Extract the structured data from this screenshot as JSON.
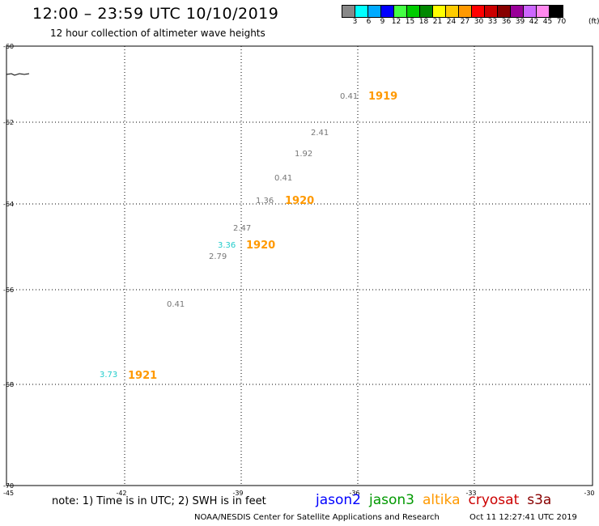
{
  "header": {
    "title": "12:00 – 23:59 UTC 10/10/2019",
    "subtitle": "12 hour collection of altimeter wave heights"
  },
  "colorbar": {
    "colors": [
      "#888888",
      "#00ffff",
      "#00aaff",
      "#0000ff",
      "#44ff44",
      "#00cc00",
      "#008800",
      "#ffff00",
      "#ffcc00",
      "#ff9900",
      "#ff0000",
      "#cc0000",
      "#880000",
      "#990099",
      "#cc66ff",
      "#ff88ee",
      "#000000"
    ],
    "labels": [
      "3",
      "6",
      "9",
      "12",
      "15",
      "18",
      "21",
      "24",
      "27",
      "30",
      "33",
      "36",
      "39",
      "42",
      "45",
      "70"
    ],
    "unit": "(ft)"
  },
  "axes": {
    "lon_ticks": [
      "-45",
      "-42",
      "-39",
      "-36",
      "-33",
      "-30"
    ],
    "lat_ticks": [
      "-60",
      "-62",
      "-64",
      "-66",
      "-68",
      "-70"
    ]
  },
  "observations": [
    {
      "value": "0.41",
      "color": "#777777"
    },
    {
      "value": "2.41",
      "color": "#777777"
    },
    {
      "value": "1.92",
      "color": "#777777"
    },
    {
      "value": "0.41",
      "color": "#777777"
    },
    {
      "value": "1.36",
      "color": "#777777"
    },
    {
      "value": "2.47",
      "color": "#777777"
    },
    {
      "value": "3.36",
      "color": "#22cccc"
    },
    {
      "value": "2.79",
      "color": "#777777"
    },
    {
      "value": "0.41",
      "color": "#777777"
    },
    {
      "value": "3.73",
      "color": "#22cccc"
    }
  ],
  "pass_labels": [
    {
      "text": "1919",
      "color": "#ff9900"
    },
    {
      "text": "1920",
      "color": "#ff9900"
    },
    {
      "text": "1920",
      "color": "#ff9900"
    },
    {
      "text": "1921",
      "color": "#ff9900"
    }
  ],
  "footer": {
    "note": "note: 1) Time is in UTC; 2) SWH is in feet",
    "satellites": [
      {
        "name": "jason2",
        "color": "#0000ff"
      },
      {
        "name": "jason3",
        "color": "#009900"
      },
      {
        "name": "altika",
        "color": "#ff9900"
      },
      {
        "name": "cryosat",
        "color": "#cc0000"
      },
      {
        "name": "s3a",
        "color": "#880000"
      }
    ],
    "credit": "NOAA/NESDIS Center for Satellite Applications and Research",
    "timestamp": "Oct 11 12:27:41 UTC 2019"
  }
}
